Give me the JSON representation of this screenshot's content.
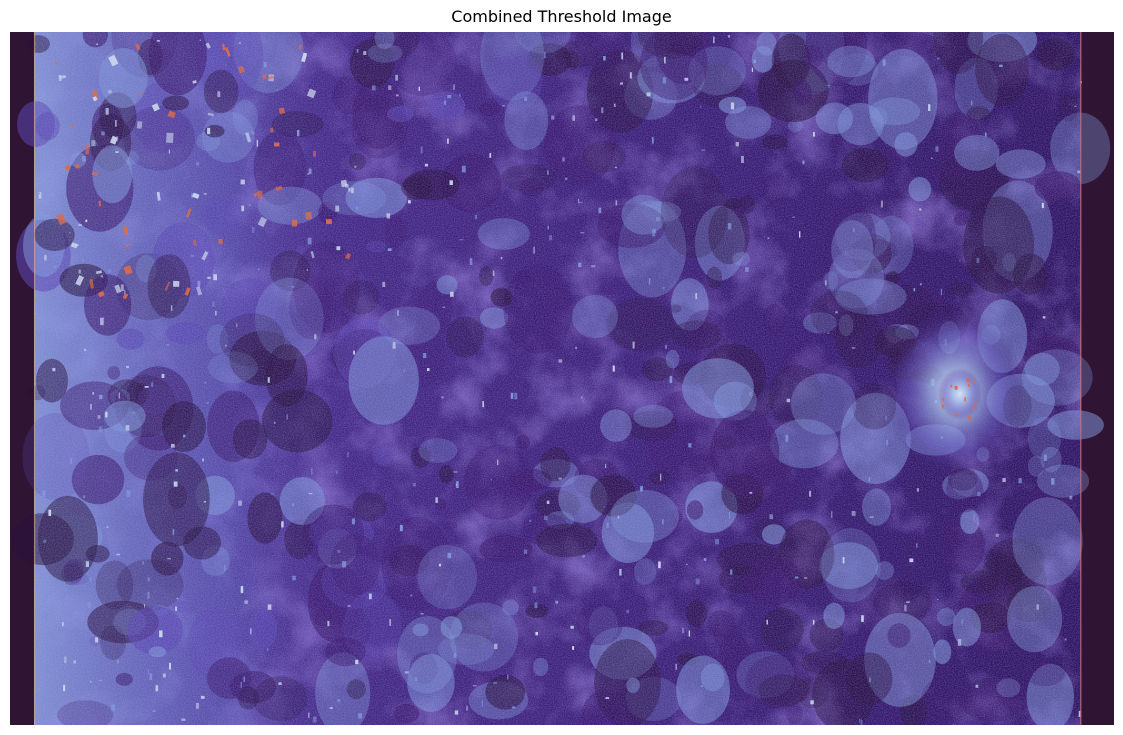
{
  "figure": {
    "title": "Combined Threshold Image",
    "colormap_name": "twilight-shifted",
    "background_color": "#301433",
    "colors": {
      "dark": "#2a0f3d",
      "deep_purple": "#3a1466",
      "mid_purple": "#4a2a8c",
      "violet": "#5b45b0",
      "blue_light": "#7f93d6",
      "pale": "#c9d6ec",
      "hot": "#d96b4f"
    },
    "features": [
      {
        "name": "bright-urban-cluster",
        "location": "right-center"
      },
      {
        "name": "bright-field-patches",
        "location": "left-top"
      },
      {
        "name": "light-blue-texture-band",
        "location": "left-edge"
      }
    ]
  }
}
